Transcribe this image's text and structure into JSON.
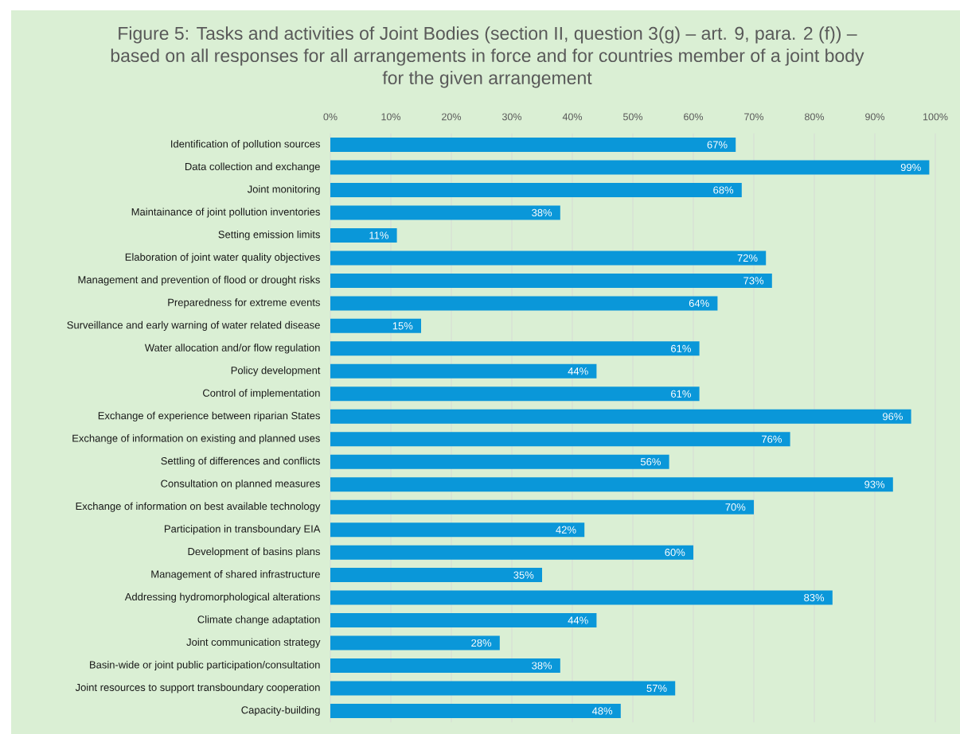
{
  "chart_data": {
    "type": "bar",
    "orientation": "horizontal",
    "title": "Figure 5: Tasks and activities of Joint Bodies (section II, question 3(g) – art. 9, para. 2 (f)) – based on all responses for all arrangements in force and for countries member of a joint body for the given arrangement",
    "categories": [
      "Identification of pollution sources",
      "Data collection and exchange",
      "Joint monitoring",
      "Maintainance of joint pollution inventories",
      "Setting emission limits",
      "Elaboration of joint water quality objectives",
      "Management and prevention of flood or drought risks",
      "Preparedness for extreme events",
      "Surveillance and early warning of water related disease",
      "Water allocation and/or flow regulation",
      "Policy development",
      "Control of implementation",
      "Exchange of experience between riparian States",
      "Exchange of information on existing and planned uses",
      "Settling of differences and conflicts",
      "Consultation on planned measures",
      "Exchange of information on best available technology",
      "Participation in transboundary EIA",
      "Development of basins plans",
      "Management of shared infrastructure",
      "Addressing hydromorphological alterations",
      "Climate change adaptation",
      "Joint communication strategy",
      "Basin-wide or joint public participation/consultation",
      "Joint resources to support transboundary cooperation",
      "Capacity-building"
    ],
    "values": [
      67,
      99,
      68,
      38,
      11,
      72,
      73,
      64,
      15,
      61,
      44,
      61,
      96,
      76,
      56,
      93,
      70,
      42,
      60,
      35,
      83,
      44,
      28,
      38,
      57,
      48
    ],
    "value_labels": [
      "67%",
      "99%",
      "68%",
      "38%",
      "11%",
      "72%",
      "73%",
      "64%",
      "15%",
      "61%",
      "44%",
      "61%",
      "96%",
      "76%",
      "56%",
      "93%",
      "70%",
      "42%",
      "60%",
      "35%",
      "83%",
      "44%",
      "28%",
      "38%",
      "57%",
      "48%"
    ],
    "color": "#0a97d9",
    "xlim": [
      0,
      100
    ],
    "xticks": [
      {
        "value": 0,
        "label": "0%"
      },
      {
        "value": 10,
        "label": "10%"
      },
      {
        "value": 20,
        "label": "20%"
      },
      {
        "value": 30,
        "label": "30%"
      },
      {
        "value": 40,
        "label": "40%"
      },
      {
        "value": 50,
        "label": "50%"
      },
      {
        "value": 60,
        "label": "60%"
      },
      {
        "value": 70,
        "label": "70%"
      },
      {
        "value": 80,
        "label": "80%"
      },
      {
        "value": 90,
        "label": "90%"
      },
      {
        "value": 100,
        "label": "100%"
      }
    ],
    "grid": "x"
  }
}
